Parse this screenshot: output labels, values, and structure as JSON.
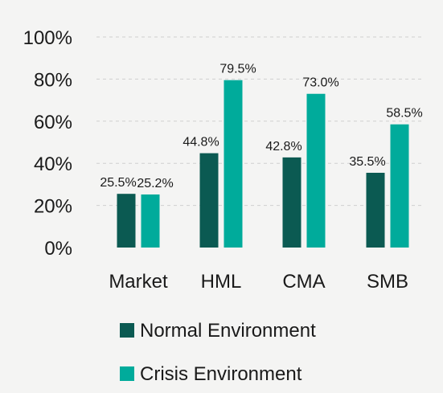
{
  "chart_data": {
    "type": "bar",
    "categories": [
      "Market",
      "HML",
      "CMA",
      "SMB"
    ],
    "series": [
      {
        "name": "Normal Environment",
        "values": [
          25.5,
          44.8,
          42.8,
          35.5
        ],
        "labels": [
          "25.5%",
          "44.8%",
          "42.8%",
          "35.5%"
        ],
        "color": "#0b5a52"
      },
      {
        "name": "Crisis Environment",
        "values": [
          25.2,
          79.5,
          73.0,
          58.5
        ],
        "labels": [
          "25.2%",
          "79.5%",
          "73.0%",
          "58.5%"
        ],
        "color": "#00ab9b"
      }
    ],
    "yticks": [
      0,
      20,
      40,
      60,
      80,
      100
    ],
    "ytick_labels": [
      "0%",
      "20%",
      "40%",
      "60%",
      "80%",
      "100%"
    ],
    "ylim": [
      0,
      100
    ],
    "grid": true,
    "legend": "bottom"
  }
}
